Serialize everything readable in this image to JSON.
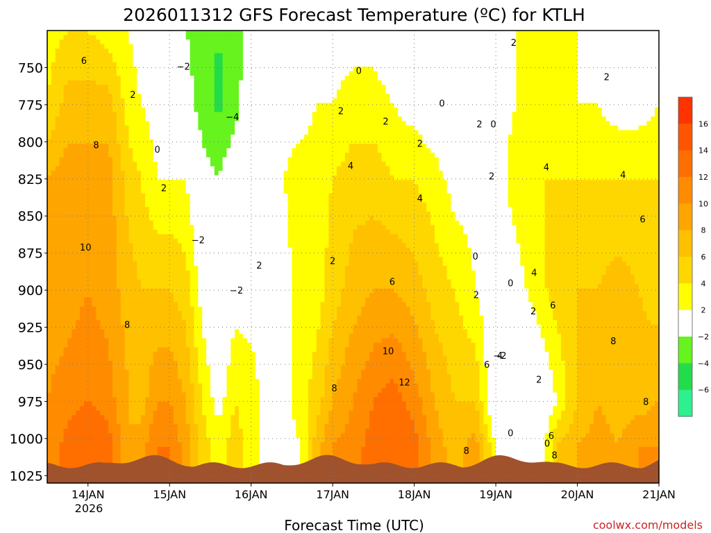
{
  "chart_data": {
    "type": "heatmap",
    "title": "2026011312 GFS Forecast Temperature (ºC) for KTLH",
    "xlabel": "Forecast Time (UTC)",
    "credit": "coolwx.com/models",
    "x_ticks": [
      "14JAN",
      "15JAN",
      "16JAN",
      "17JAN",
      "18JAN",
      "19JAN",
      "20JAN",
      "21JAN"
    ],
    "x_year_label": "2026",
    "x_range_days": [
      13.5,
      21.0
    ],
    "y_ticks": [
      "750",
      "775",
      "800",
      "825",
      "850",
      "875",
      "900",
      "925",
      "950",
      "975",
      "1000",
      "1025"
    ],
    "y_range_hpa": [
      725,
      1030
    ],
    "colorbar": {
      "labels": [
        "16",
        "14",
        "12",
        "10",
        "8",
        "6",
        "4",
        "2",
        "−2",
        "−4",
        "−6"
      ],
      "levels": [
        -6,
        -4,
        -2,
        2,
        4,
        6,
        8,
        10,
        12,
        14,
        16,
        18
      ],
      "colors": [
        "#2ef08e",
        "#22dc4a",
        "#66f31e",
        "#ffffff",
        "#ffff00",
        "#ffd700",
        "#ffc000",
        "#ffa500",
        "#ff8c00",
        "#ff6f00",
        "#ff5500",
        "#ff3300"
      ]
    },
    "grid": true,
    "ground_color": "#a0522d",
    "zero_contour_color": "#cc0088",
    "profiles": [
      {
        "t": 13.5,
        "v": [
          [
            725,
            3
          ],
          [
            775,
            4
          ],
          [
            825,
            8
          ],
          [
            900,
            9
          ],
          [
            975,
            10
          ],
          [
            1000,
            10
          ]
        ]
      },
      {
        "t": 13.75,
        "v": [
          [
            725,
            4
          ],
          [
            775,
            7
          ],
          [
            825,
            9
          ],
          [
            900,
            9
          ],
          [
            975,
            11
          ],
          [
            1005,
            13
          ]
        ]
      },
      {
        "t": 14.0,
        "v": [
          [
            725,
            4
          ],
          [
            775,
            7
          ],
          [
            825,
            9
          ],
          [
            900,
            10
          ],
          [
            975,
            12
          ],
          [
            1005,
            14
          ]
        ]
      },
      {
        "t": 14.25,
        "v": [
          [
            725,
            3
          ],
          [
            775,
            7
          ],
          [
            825,
            9
          ],
          [
            900,
            9
          ],
          [
            975,
            11
          ],
          [
            1005,
            13
          ]
        ]
      },
      {
        "t": 14.5,
        "v": [
          [
            725,
            2
          ],
          [
            775,
            3
          ],
          [
            825,
            5
          ],
          [
            900,
            7
          ],
          [
            975,
            8
          ],
          [
            1005,
            8
          ]
        ]
      },
      {
        "t": 14.65,
        "v": [
          [
            725,
            1
          ],
          [
            775,
            2
          ],
          [
            825,
            4
          ],
          [
            900,
            6
          ],
          [
            975,
            7
          ],
          [
            1005,
            9
          ]
        ]
      },
      {
        "t": 14.85,
        "v": [
          [
            725,
            0
          ],
          [
            775,
            1
          ],
          [
            825,
            2
          ],
          [
            900,
            6
          ],
          [
            975,
            10
          ],
          [
            1005,
            12
          ]
        ]
      },
      {
        "t": 15.0,
        "v": [
          [
            725,
            -0.5
          ],
          [
            775,
            0.5
          ],
          [
            825,
            2
          ],
          [
            900,
            6
          ],
          [
            975,
            10
          ],
          [
            1005,
            12
          ]
        ]
      },
      {
        "t": 15.2,
        "v": [
          [
            725,
            -2
          ],
          [
            775,
            -1
          ],
          [
            825,
            2
          ],
          [
            900,
            5
          ],
          [
            975,
            8
          ],
          [
            1005,
            9
          ]
        ]
      },
      {
        "t": 15.4,
        "v": [
          [
            725,
            -3
          ],
          [
            775,
            -3
          ],
          [
            825,
            -1
          ],
          [
            900,
            1
          ],
          [
            975,
            4
          ],
          [
            1005,
            5
          ]
        ]
      },
      {
        "t": 15.6,
        "v": [
          [
            725,
            -4
          ],
          [
            775,
            -4.5
          ],
          [
            825,
            -2
          ],
          [
            900,
            -1
          ],
          [
            975,
            1
          ],
          [
            1005,
            3
          ]
        ]
      },
      {
        "t": 15.8,
        "v": [
          [
            725,
            -3
          ],
          [
            775,
            -3
          ],
          [
            825,
            0
          ],
          [
            900,
            1
          ],
          [
            975,
            4
          ],
          [
            1005,
            5
          ]
        ]
      },
      {
        "t": 16.0,
        "v": [
          [
            725,
            -1
          ],
          [
            775,
            0
          ],
          [
            825,
            1
          ],
          [
            900,
            1
          ],
          [
            975,
            3
          ],
          [
            1005,
            3
          ]
        ]
      },
      {
        "t": 16.2,
        "v": [
          [
            725,
            0
          ],
          [
            775,
            1
          ],
          [
            825,
            1
          ],
          [
            900,
            1
          ],
          [
            975,
            1
          ],
          [
            1005,
            1
          ]
        ]
      },
      {
        "t": 16.4,
        "v": [
          [
            725,
            0
          ],
          [
            775,
            1
          ],
          [
            825,
            2
          ],
          [
            900,
            1
          ],
          [
            975,
            1
          ],
          [
            1005,
            1
          ]
        ]
      },
      {
        "t": 16.6,
        "v": [
          [
            725,
            0
          ],
          [
            775,
            1
          ],
          [
            825,
            3
          ],
          [
            900,
            3
          ],
          [
            975,
            3
          ],
          [
            1005,
            2
          ]
        ]
      },
      {
        "t": 16.8,
        "v": [
          [
            725,
            1
          ],
          [
            775,
            2
          ],
          [
            825,
            3
          ],
          [
            900,
            3
          ],
          [
            975,
            5
          ],
          [
            1005,
            7
          ]
        ]
      },
      {
        "t": 17.0,
        "v": [
          [
            725,
            1
          ],
          [
            775,
            2
          ],
          [
            825,
            4
          ],
          [
            900,
            5
          ],
          [
            975,
            8
          ],
          [
            1005,
            10
          ]
        ]
      },
      {
        "t": 17.25,
        "v": [
          [
            725,
            1
          ],
          [
            775,
            3
          ],
          [
            825,
            5
          ],
          [
            900,
            7
          ],
          [
            975,
            10
          ],
          [
            1005,
            11
          ]
        ]
      },
      {
        "t": 17.5,
        "v": [
          [
            725,
            1
          ],
          [
            775,
            3
          ],
          [
            825,
            5
          ],
          [
            900,
            8
          ],
          [
            975,
            12
          ],
          [
            1005,
            13
          ]
        ]
      },
      {
        "t": 17.75,
        "v": [
          [
            725,
            0
          ],
          [
            775,
            2
          ],
          [
            825,
            4
          ],
          [
            900,
            8
          ],
          [
            975,
            13
          ],
          [
            1005,
            14
          ]
        ]
      },
      {
        "t": 18.0,
        "v": [
          [
            725,
            0
          ],
          [
            775,
            1
          ],
          [
            825,
            4
          ],
          [
            900,
            7
          ],
          [
            975,
            11
          ],
          [
            1005,
            13
          ]
        ]
      },
      {
        "t": 18.25,
        "v": [
          [
            725,
            -1
          ],
          [
            775,
            0
          ],
          [
            825,
            3
          ],
          [
            900,
            5
          ],
          [
            975,
            8
          ],
          [
            1005,
            9
          ]
        ]
      },
      {
        "t": 18.5,
        "v": [
          [
            725,
            -2
          ],
          [
            775,
            -2
          ],
          [
            825,
            1
          ],
          [
            900,
            4
          ],
          [
            975,
            6
          ],
          [
            1005,
            7
          ]
        ]
      },
      {
        "t": 18.75,
        "v": [
          [
            725,
            -1
          ],
          [
            775,
            0
          ],
          [
            825,
            1
          ],
          [
            900,
            2
          ],
          [
            975,
            6
          ],
          [
            1005,
            9
          ]
        ]
      },
      {
        "t": 19.0,
        "v": [
          [
            725,
            1
          ],
          [
            775,
            1
          ],
          [
            825,
            1
          ],
          [
            900,
            0
          ],
          [
            975,
            -1
          ],
          [
            1005,
            2
          ]
        ]
      },
      {
        "t": 19.25,
        "v": [
          [
            725,
            2
          ],
          [
            775,
            2
          ],
          [
            825,
            3
          ],
          [
            900,
            1
          ],
          [
            975,
            -2
          ],
          [
            1005,
            -1
          ]
        ]
      },
      {
        "t": 19.5,
        "v": [
          [
            725,
            2
          ],
          [
            775,
            2
          ],
          [
            825,
            4
          ],
          [
            900,
            3
          ],
          [
            975,
            -1
          ],
          [
            1005,
            -1
          ]
        ]
      },
      {
        "t": 19.75,
        "v": [
          [
            725,
            2
          ],
          [
            775,
            2
          ],
          [
            825,
            4
          ],
          [
            900,
            5
          ],
          [
            975,
            2
          ],
          [
            1005,
            6
          ]
        ]
      },
      {
        "t": 20.0,
        "v": [
          [
            725,
            2
          ],
          [
            775,
            2
          ],
          [
            825,
            4
          ],
          [
            900,
            6
          ],
          [
            975,
            6
          ],
          [
            1005,
            8
          ]
        ]
      },
      {
        "t": 20.25,
        "v": [
          [
            725,
            1
          ],
          [
            775,
            2
          ],
          [
            825,
            4
          ],
          [
            900,
            6
          ],
          [
            975,
            8
          ],
          [
            1005,
            9
          ]
        ]
      },
      {
        "t": 20.5,
        "v": [
          [
            725,
            0
          ],
          [
            775,
            1
          ],
          [
            825,
            4
          ],
          [
            900,
            7
          ],
          [
            975,
            7
          ],
          [
            1005,
            8
          ]
        ]
      },
      {
        "t": 20.75,
        "v": [
          [
            725,
            0
          ],
          [
            775,
            1
          ],
          [
            825,
            4
          ],
          [
            900,
            6
          ],
          [
            975,
            7
          ],
          [
            1005,
            10
          ]
        ]
      },
      {
        "t": 21.0,
        "v": [
          [
            725,
            0
          ],
          [
            775,
            2
          ],
          [
            825,
            4
          ],
          [
            900,
            5
          ],
          [
            975,
            8
          ],
          [
            1005,
            10
          ]
        ]
      }
    ],
    "contour_labels": [
      {
        "t": 13.95,
        "p": 745,
        "text": "6"
      },
      {
        "t": 14.55,
        "p": 768,
        "text": "2"
      },
      {
        "t": 14.1,
        "p": 802,
        "text": "8"
      },
      {
        "t": 14.85,
        "p": 805,
        "text": "0"
      },
      {
        "t": 14.93,
        "p": 831,
        "text": "2"
      },
      {
        "t": 15.17,
        "p": 749,
        "text": "−2"
      },
      {
        "t": 15.77,
        "p": 783,
        "text": "−4"
      },
      {
        "t": 15.35,
        "p": 866,
        "text": "−2"
      },
      {
        "t": 15.82,
        "p": 900,
        "text": "−2"
      },
      {
        "t": 13.97,
        "p": 871,
        "text": "10"
      },
      {
        "t": 14.48,
        "p": 923,
        "text": "8"
      },
      {
        "t": 16.1,
        "p": 883,
        "text": "2"
      },
      {
        "t": 17.1,
        "p": 779,
        "text": "2"
      },
      {
        "t": 17.22,
        "p": 816,
        "text": "4"
      },
      {
        "t": 17.65,
        "p": 786,
        "text": "2"
      },
      {
        "t": 18.07,
        "p": 801,
        "text": "2"
      },
      {
        "t": 18.07,
        "p": 838,
        "text": "4"
      },
      {
        "t": 17.73,
        "p": 894,
        "text": "6"
      },
      {
        "t": 17.68,
        "p": 941,
        "text": "10"
      },
      {
        "t": 17.88,
        "p": 962,
        "text": "12"
      },
      {
        "t": 17.02,
        "p": 966,
        "text": "8"
      },
      {
        "t": 17.0,
        "p": 880,
        "text": "2"
      },
      {
        "t": 17.32,
        "p": 752,
        "text": "0"
      },
      {
        "t": 18.34,
        "p": 774,
        "text": "0"
      },
      {
        "t": 18.8,
        "p": 788,
        "text": "2"
      },
      {
        "t": 18.97,
        "p": 788,
        "text": "0"
      },
      {
        "t": 19.22,
        "p": 733,
        "text": "2"
      },
      {
        "t": 20.36,
        "p": 756,
        "text": "2"
      },
      {
        "t": 18.95,
        "p": 823,
        "text": "2"
      },
      {
        "t": 19.62,
        "p": 817,
        "text": "4"
      },
      {
        "t": 20.56,
        "p": 822,
        "text": "4"
      },
      {
        "t": 20.8,
        "p": 852,
        "text": "6"
      },
      {
        "t": 18.75,
        "p": 877,
        "text": "0"
      },
      {
        "t": 18.76,
        "p": 903,
        "text": "2"
      },
      {
        "t": 19.18,
        "p": 895,
        "text": "0"
      },
      {
        "t": 19.47,
        "p": 888,
        "text": "4"
      },
      {
        "t": 19.46,
        "p": 914,
        "text": "2"
      },
      {
        "t": 19.7,
        "p": 910,
        "text": "6"
      },
      {
        "t": 20.44,
        "p": 934,
        "text": "8"
      },
      {
        "t": 18.89,
        "p": 950,
        "text": "6"
      },
      {
        "t": 19.05,
        "p": 944,
        "text": "4"
      },
      {
        "t": 19.05,
        "p": 944,
        "text": "−2"
      },
      {
        "t": 19.53,
        "p": 960,
        "text": "2"
      },
      {
        "t": 20.84,
        "p": 975,
        "text": "8"
      },
      {
        "t": 19.18,
        "p": 996,
        "text": "0"
      },
      {
        "t": 19.68,
        "p": 998,
        "text": "6"
      },
      {
        "t": 19.63,
        "p": 1003,
        "text": "0"
      },
      {
        "t": 19.72,
        "p": 1011,
        "text": "8"
      },
      {
        "t": 18.64,
        "p": 1008,
        "text": "8"
      }
    ]
  }
}
